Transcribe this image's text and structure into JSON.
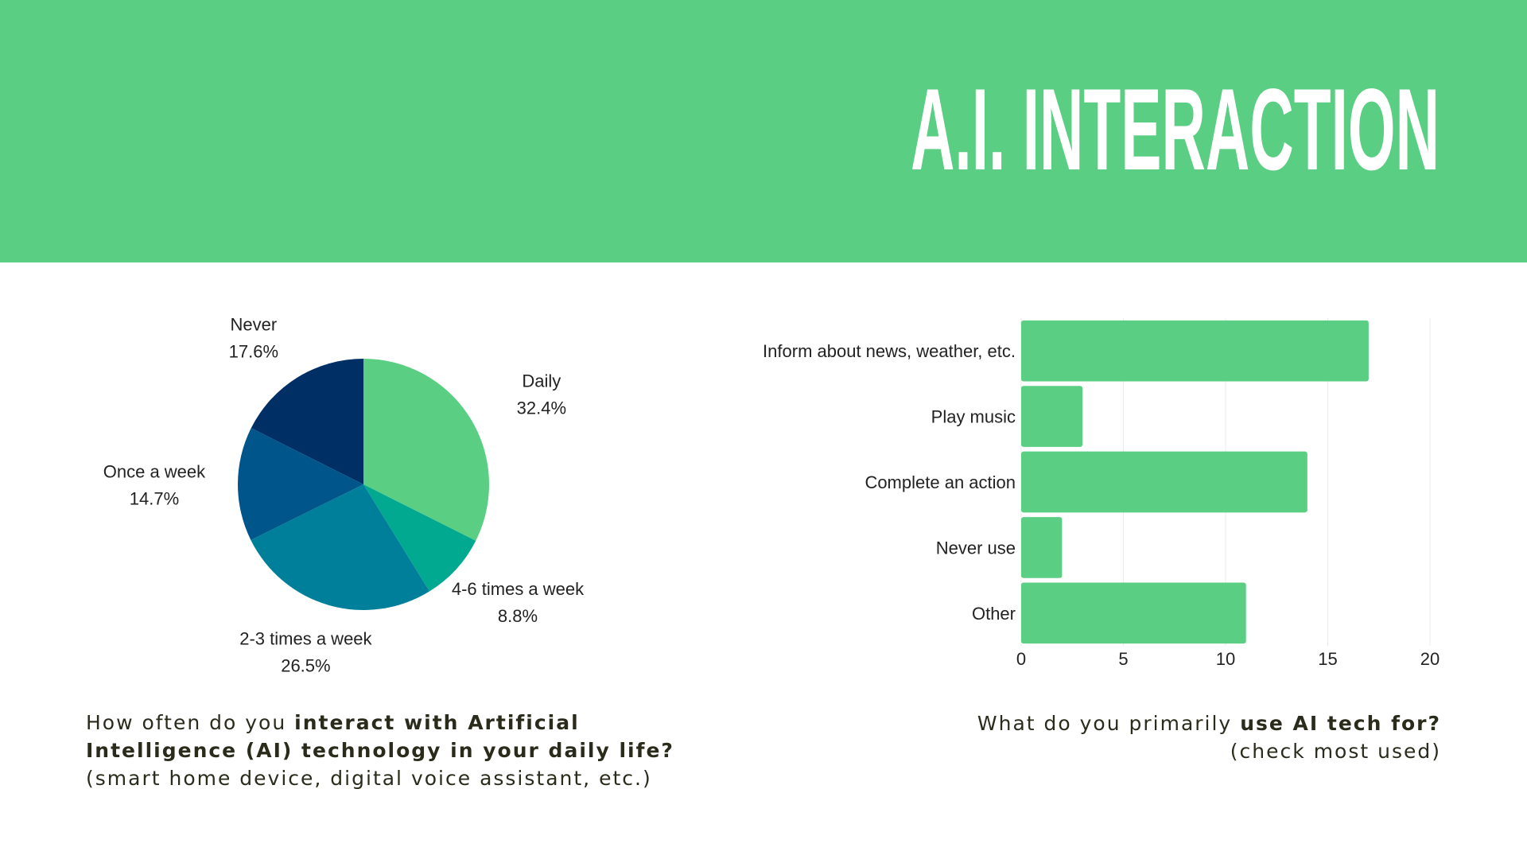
{
  "title": "A.I. INTERACTION",
  "chart_data": [
    {
      "type": "pie",
      "categories": [
        "Daily",
        "4-6 times a week",
        "2-3 times a week",
        "Once a week",
        "Never"
      ],
      "values": [
        32.4,
        8.8,
        26.5,
        14.7,
        17.6
      ],
      "value_labels": [
        "32.4%",
        "8.8%",
        "26.5%",
        "14.7%",
        "17.6%"
      ],
      "colors": [
        "#5ace82",
        "#00a98f",
        "#007f9a",
        "#00568a",
        "#002f66"
      ],
      "caption": [
        [
          {
            "text": "How often do you ",
            "bold": false
          },
          {
            "text": "interact with Artificial",
            "bold": true
          }
        ],
        [
          {
            "text": "Intelligence (AI) technology in your daily life?",
            "bold": true
          }
        ],
        [
          {
            "text": "(smart home device, digital voice assistant, etc.)",
            "bold": false
          }
        ]
      ]
    },
    {
      "type": "bar",
      "orientation": "horizontal",
      "categories": [
        "Inform about news, weather, etc.",
        "Play music",
        "Complete an action",
        "Never use",
        "Other"
      ],
      "values": [
        17,
        3,
        14,
        2,
        11
      ],
      "color": "#5ace82",
      "xlim": [
        0,
        20
      ],
      "xticks": [
        0,
        5,
        10,
        15,
        20
      ],
      "grid": true,
      "caption": [
        [
          {
            "text": "What do you primarily ",
            "bold": false
          },
          {
            "text": "use AI tech for?",
            "bold": true
          }
        ],
        [
          {
            "text": "(check most used)",
            "bold": false
          }
        ]
      ]
    }
  ]
}
